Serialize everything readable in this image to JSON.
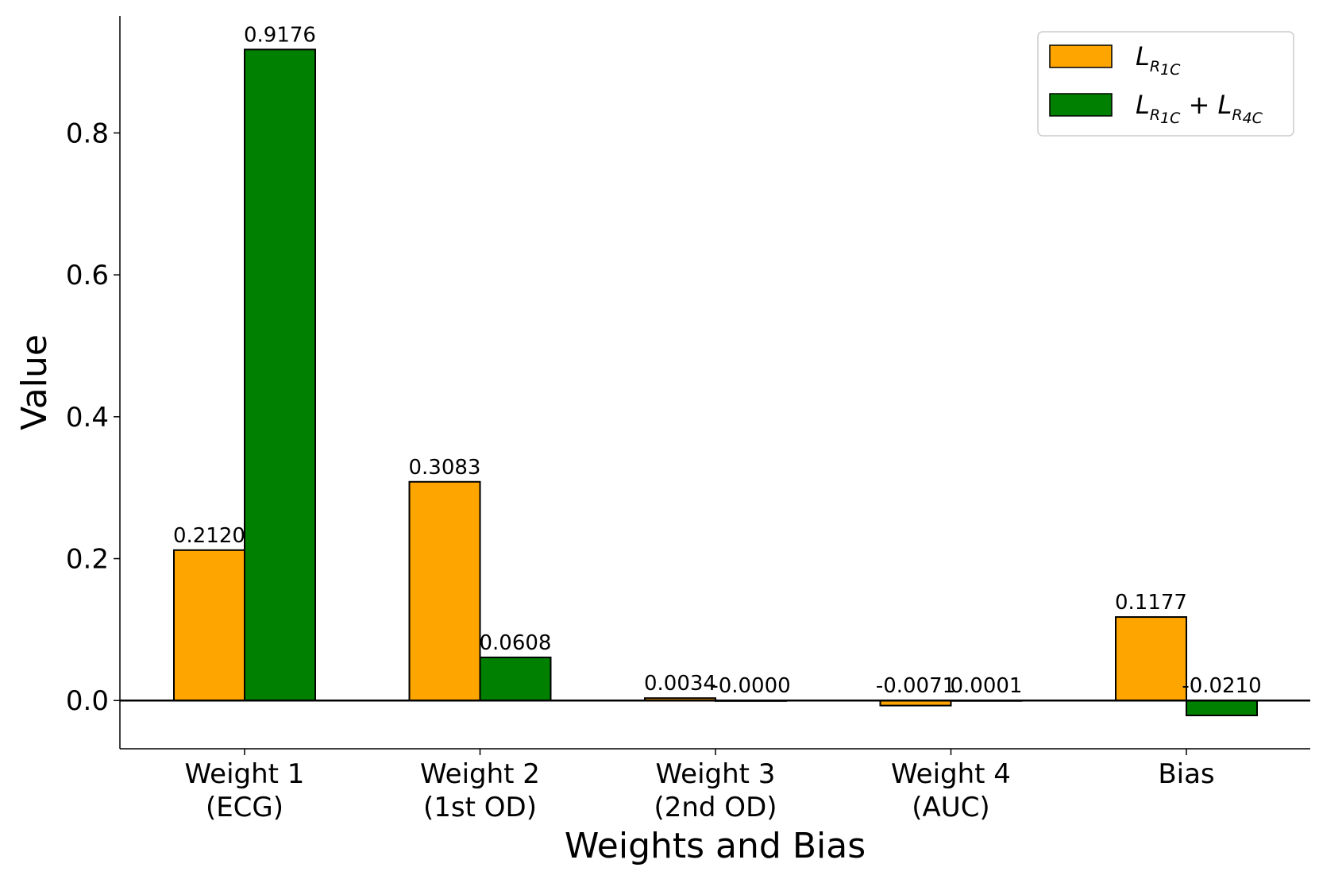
{
  "chart_data": {
    "type": "bar",
    "title": "",
    "xlabel": "Weights and Bias",
    "ylabel": "Value",
    "ylim": [
      -0.068,
      0.965
    ],
    "yticks": [
      "0.0",
      "0.2",
      "0.4",
      "0.6",
      "0.8"
    ],
    "ytick_values": [
      0.0,
      0.2,
      0.4,
      0.6,
      0.8
    ],
    "categories": [
      [
        "Weight 1",
        "(ECG)"
      ],
      [
        "Weight 2",
        "(1st OD)"
      ],
      [
        "Weight 3",
        "(2nd OD)"
      ],
      [
        "Weight 4",
        "(AUC)"
      ],
      [
        "Bias"
      ]
    ],
    "series": [
      {
        "name": "L_R1C",
        "color": "#FFA500",
        "values": [
          0.212,
          0.3083,
          0.0034,
          -0.0071,
          0.1177
        ],
        "labels": [
          "0.2120",
          "0.3083",
          "0.0034",
          "-0.0071",
          "0.1177"
        ]
      },
      {
        "name": "L_R1C + L_R4C",
        "color": "#008000",
        "values": [
          0.9176,
          0.0608,
          -0.0,
          0.0001,
          -0.021
        ],
        "labels": [
          "0.9176",
          "0.0608",
          "-0.0000",
          "0.0001",
          "-0.0210"
        ]
      }
    ],
    "legend": {
      "location": "top-right",
      "entries": [
        {
          "base": "L",
          "sub": "R",
          "subsub": "1C"
        },
        {
          "base": "L",
          "sub": "R",
          "subsub": "1C",
          "plus": "+",
          "base2": "L",
          "sub2": "R",
          "subsub2": "4C"
        }
      ]
    },
    "zero_line": true,
    "grid": false
  }
}
